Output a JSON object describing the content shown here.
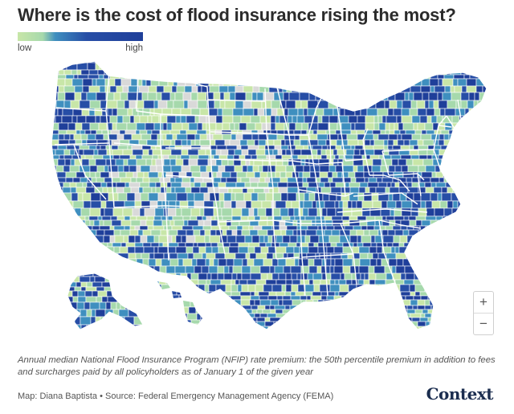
{
  "title": "Where is the cost of flood insurance rising the most?",
  "legend": {
    "low_label": "low",
    "high_label": "high",
    "colors": [
      "#c8e6a8",
      "#a6d9ac",
      "#3f8fbf",
      "#274ea6",
      "#1f3f9a"
    ]
  },
  "map": {
    "type": "county choropleth",
    "region": "United States (contiguous, Alaska, Hawaii)",
    "no_data_color": "#d9d9d9",
    "border_color": "#ffffff"
  },
  "zoom": {
    "in_label": "+",
    "out_label": "−"
  },
  "caption": "Annual median National Flood Insurance Program (NFIP) rate premium: the 50th percentile premium in addition to fees and surcharges paid by all policyholders as of January 1 of the given year",
  "credit": "Map: Diana Baptista • Source: Federal Emergency Management Agency (FEMA)",
  "logo": "Context"
}
